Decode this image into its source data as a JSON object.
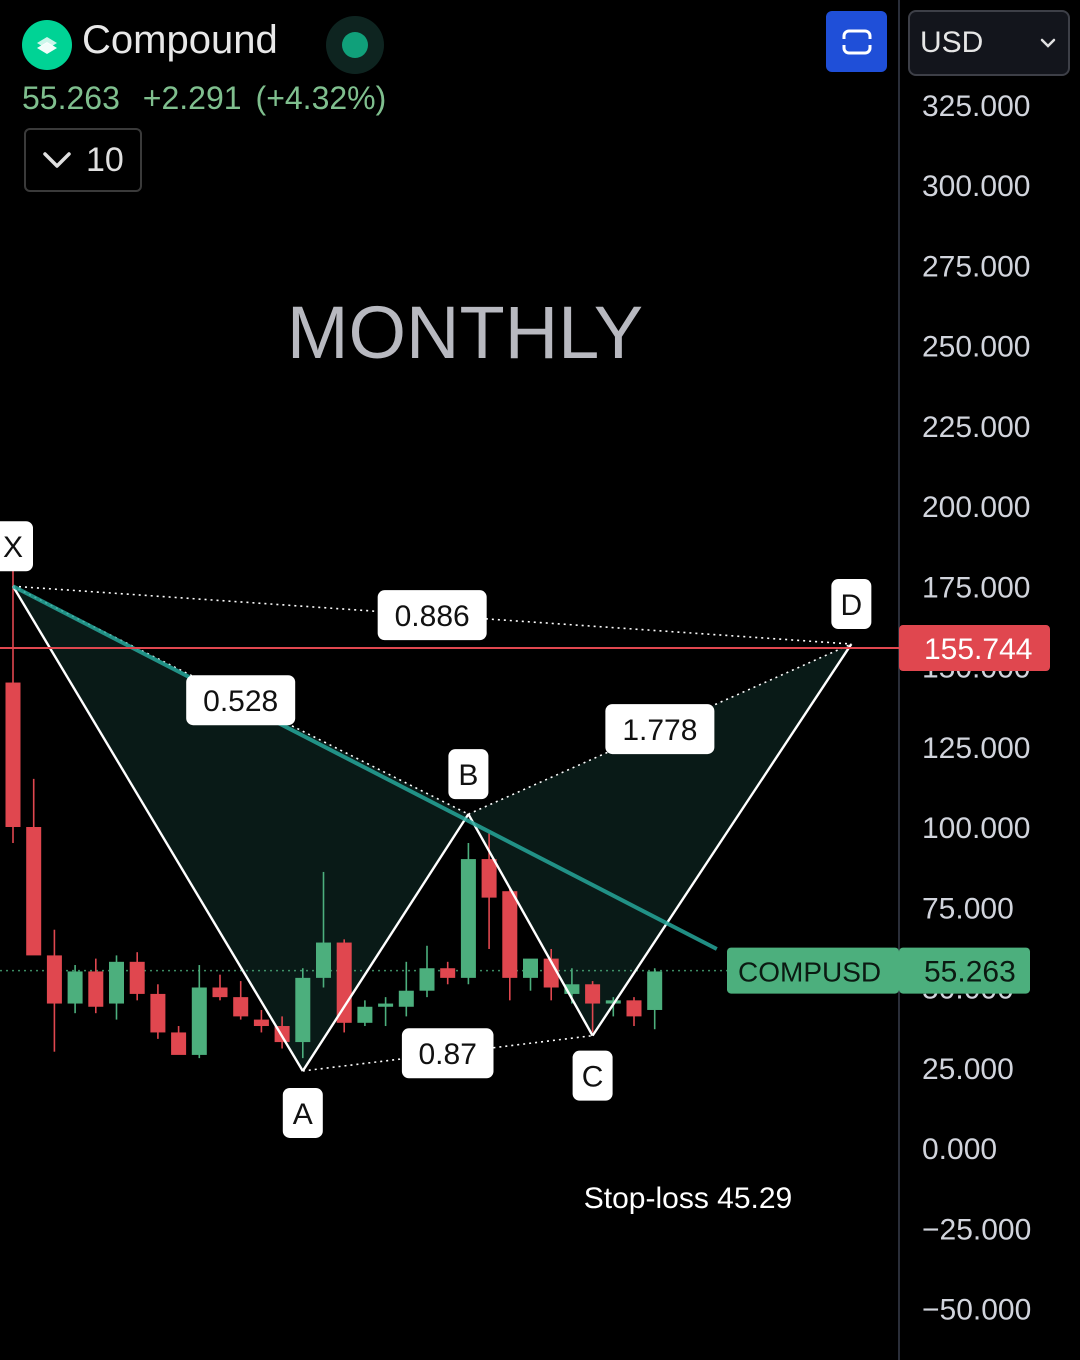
{
  "header": {
    "asset_name": "Compound",
    "price": "55.263",
    "change": "+2.291",
    "change_pct": "(+4.32%)",
    "interval_value": "10",
    "currency": "USD",
    "logo_icon": "compound-logo-icon",
    "live_indicator_icon": "live-status-dot-icon",
    "fullscreen_icon": "fullscreen-icon",
    "interval_icon": "chevron-down-icon",
    "currency_icon": "chevron-down-icon"
  },
  "colors": {
    "background": "#000000",
    "up": "#4caf7d",
    "down": "#e0474f",
    "pattern_fill": "#0a1b18",
    "trendline": "#26a69a",
    "resistance_line": "#e0474f",
    "accent_blue": "#1f4fd8"
  },
  "chart_data": {
    "type": "candlestick",
    "title": "MONTHLY",
    "symbol": "COMPUSD",
    "ylim": [
      -62.5,
      337.5
    ],
    "y_ticks": [
      "325.000",
      "300.000",
      "275.000",
      "250.000",
      "225.000",
      "200.000",
      "175.000",
      "125.000",
      "100.000",
      "75.000",
      "25.000",
      "0.000",
      "−25.000",
      "−50.000"
    ],
    "y_tick_values": [
      325,
      300,
      275,
      250,
      225,
      200,
      175,
      125,
      100,
      75,
      25,
      0,
      -25,
      -50
    ],
    "candles": [
      {
        "o": 145,
        "h": 180,
        "l": 95,
        "c": 100
      },
      {
        "o": 100,
        "h": 115,
        "l": 62,
        "c": 60
      },
      {
        "o": 60,
        "h": 68,
        "l": 30,
        "c": 45
      },
      {
        "o": 45,
        "h": 57,
        "l": 42,
        "c": 55
      },
      {
        "o": 55,
        "h": 59,
        "l": 42,
        "c": 44
      },
      {
        "o": 45,
        "h": 60,
        "l": 40,
        "c": 58
      },
      {
        "o": 58,
        "h": 61,
        "l": 46,
        "c": 48
      },
      {
        "o": 48,
        "h": 51,
        "l": 34,
        "c": 36
      },
      {
        "o": 36,
        "h": 38,
        "l": 30,
        "c": 29
      },
      {
        "o": 29,
        "h": 57,
        "l": 28,
        "c": 50
      },
      {
        "o": 50,
        "h": 54,
        "l": 46,
        "c": 47
      },
      {
        "o": 47,
        "h": 52,
        "l": 40,
        "c": 41
      },
      {
        "o": 40,
        "h": 43,
        "l": 36,
        "c": 38
      },
      {
        "o": 38,
        "h": 41,
        "l": 31,
        "c": 33
      },
      {
        "o": 33,
        "h": 56,
        "l": 28,
        "c": 53
      },
      {
        "o": 53,
        "h": 86,
        "l": 50,
        "c": 64
      },
      {
        "o": 64,
        "h": 65,
        "l": 36,
        "c": 39
      },
      {
        "o": 39,
        "h": 46,
        "l": 38,
        "c": 44
      },
      {
        "o": 44,
        "h": 47,
        "l": 38,
        "c": 45
      },
      {
        "o": 44,
        "h": 58,
        "l": 41,
        "c": 49
      },
      {
        "o": 49,
        "h": 63,
        "l": 47,
        "c": 56
      },
      {
        "o": 56,
        "h": 58,
        "l": 51,
        "c": 53
      },
      {
        "o": 53,
        "h": 95,
        "l": 51,
        "c": 90
      },
      {
        "o": 90,
        "h": 98,
        "l": 62,
        "c": 78
      },
      {
        "o": 80,
        "h": 81,
        "l": 46,
        "c": 53
      },
      {
        "o": 53,
        "h": 56,
        "l": 49,
        "c": 59
      },
      {
        "o": 59,
        "h": 62,
        "l": 46,
        "c": 50
      },
      {
        "o": 48,
        "h": 56,
        "l": 45,
        "c": 51
      },
      {
        "o": 51,
        "h": 52,
        "l": 36,
        "c": 45
      },
      {
        "o": 45,
        "h": 47,
        "l": 41,
        "c": 46
      },
      {
        "o": 46,
        "h": 47,
        "l": 38,
        "c": 41
      },
      {
        "o": 43,
        "h": 56,
        "l": 37,
        "c": 55
      }
    ],
    "pattern": {
      "points": [
        {
          "label": "X",
          "index": 0,
          "price": 175
        },
        {
          "label": "A",
          "index": 14,
          "price": 24
        },
        {
          "label": "B",
          "index": 22,
          "price": 104
        },
        {
          "label": "C",
          "index": 28,
          "price": 35
        },
        {
          "label": "D",
          "index": 40.5,
          "price": 157
        }
      ],
      "ratios": [
        {
          "value": "0.886",
          "between": "X-D"
        },
        {
          "value": "0.528",
          "between": "X-B"
        },
        {
          "value": "1.778",
          "between": "B-D"
        },
        {
          "value": "0.87",
          "between": "A-C"
        }
      ]
    },
    "trendline": {
      "from": {
        "index": 0,
        "price": 175
      },
      "to": {
        "index": 34,
        "price": 62
      }
    },
    "resistance": {
      "price": 155.744,
      "label": "155.744"
    },
    "last_price": {
      "price": 55.263,
      "symbol_label": "COMPUSD",
      "value_label": "55.263"
    },
    "annotation": "Stop-loss 45.29"
  }
}
